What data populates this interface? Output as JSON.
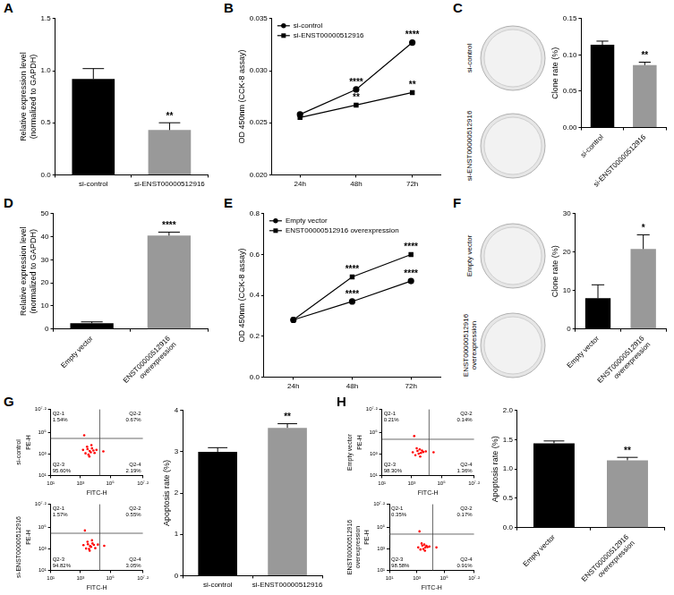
{
  "chart_data": [
    {
      "panel": "A",
      "type": "bar",
      "categories": [
        "si-control",
        "si-ENST00000512916"
      ],
      "values": [
        0.92,
        0.43
      ],
      "errors": [
        0.1,
        0.07
      ],
      "colors": [
        "#000000",
        "#999999"
      ],
      "y_label": [
        "Relative expression level",
        "(normalized to GAPDH)"
      ],
      "ylim": [
        0,
        1.5
      ],
      "yticks": [
        {
          "value": 0,
          "label": "0.0"
        },
        {
          "value": 0.5,
          "label": "0.5"
        },
        {
          "value": 1,
          "label": "1.0"
        },
        {
          "value": 1.5,
          "label": "1.5"
        }
      ],
      "annotations": [
        {
          "x": "si-ENST00000512916",
          "text": "**"
        }
      ]
    },
    {
      "panel": "B",
      "type": "line",
      "categories": [
        "24h",
        "48h",
        "72h"
      ],
      "series": [
        {
          "name": "si-control",
          "color": "#000000",
          "marker": "circle",
          "values": [
            0.0258,
            0.0282,
            0.0327
          ]
        },
        {
          "name": "si-ENST00000512916",
          "color": "#000000",
          "marker": "square",
          "values": [
            0.0255,
            0.0267,
            0.0279
          ]
        }
      ],
      "y_label": "OD 450nm (CCK-8 assay)",
      "ylim": [
        0.02,
        0.035
      ],
      "yticks": [
        {
          "value": 0.02,
          "label": "0.020"
        },
        {
          "value": 0.025,
          "label": "0.025"
        },
        {
          "value": 0.03,
          "label": "0.030"
        },
        {
          "value": 0.035,
          "label": "0.035"
        }
      ],
      "legend": "upper left",
      "annotations": [
        {
          "x": "48h",
          "y": 0.0282,
          "text": "****"
        },
        {
          "x": "48h",
          "y": 0.0267,
          "text": "**"
        },
        {
          "x": "72h",
          "y": 0.0327,
          "text": "****"
        },
        {
          "x": "72h",
          "y": 0.0279,
          "text": "**"
        }
      ]
    },
    {
      "panel": "C",
      "type": "bar",
      "categories": [
        "si-control",
        "si-ENST00000512916"
      ],
      "values": [
        0.114,
        0.086
      ],
      "errors": [
        0.005,
        0.004
      ],
      "colors": [
        "#000000",
        "#999999"
      ],
      "y_label": "Clone rate (%)",
      "ylim": [
        0,
        0.15
      ],
      "yticks": [
        {
          "value": 0,
          "label": "0.00"
        },
        {
          "value": 0.05,
          "label": "0.05"
        },
        {
          "value": 0.1,
          "label": "0.10"
        },
        {
          "value": 0.15,
          "label": "0.15"
        }
      ],
      "annotations": [
        {
          "x": "si-ENST00000512916",
          "text": "**"
        }
      ]
    },
    {
      "panel": "D",
      "type": "bar",
      "categories": [
        "Empty vector",
        "ENST00000512916 overexpression"
      ],
      "values": [
        2.5,
        40.5
      ],
      "errors": [
        0.6,
        1.5
      ],
      "colors": [
        "#000000",
        "#999999"
      ],
      "y_label": [
        "Relative expression level",
        "(normalized to GAPDH)"
      ],
      "ylim": [
        0,
        50
      ],
      "yticks": [
        0,
        10,
        20,
        30,
        40,
        50
      ],
      "annotations": [
        {
          "x": "ENST00000512916 overexpression",
          "text": "****"
        }
      ]
    },
    {
      "panel": "E",
      "type": "line",
      "categories": [
        "24h",
        "48h",
        "72h"
      ],
      "series": [
        {
          "name": "Empty vector",
          "color": "#000000",
          "marker": "circle",
          "values": [
            0.28,
            0.37,
            0.47
          ]
        },
        {
          "name": "ENST00000512916 overexpression",
          "color": "#000000",
          "marker": "square",
          "values": [
            0.28,
            0.49,
            0.6
          ]
        }
      ],
      "y_label": "OD 450nm (CCK-8 assay)",
      "ylim": [
        0,
        0.8
      ],
      "yticks": [
        {
          "value": 0,
          "label": "0.0"
        },
        {
          "value": 0.2,
          "label": "0.2"
        },
        {
          "value": 0.4,
          "label": "0.4"
        },
        {
          "value": 0.6,
          "label": "0.6"
        },
        {
          "value": 0.8,
          "label": "0.8"
        }
      ],
      "legend": "upper left",
      "annotations": [
        {
          "x": "48h",
          "y": 0.49,
          "text": "****"
        },
        {
          "x": "48h",
          "y": 0.37,
          "text": "****"
        },
        {
          "x": "72h",
          "y": 0.6,
          "text": "****"
        },
        {
          "x": "72h",
          "y": 0.47,
          "text": "****"
        }
      ]
    },
    {
      "panel": "F",
      "type": "bar",
      "categories": [
        "Empty vector",
        "ENST00000512916 overexpression"
      ],
      "values": [
        8.0,
        20.8
      ],
      "errors": [
        3.5,
        3.7
      ],
      "colors": [
        "#000000",
        "#999999"
      ],
      "y_label": "Clone rate (%)",
      "ylim": [
        0,
        30
      ],
      "yticks": [
        0,
        10,
        20,
        30
      ],
      "annotations": [
        {
          "x": "ENST00000512916 overexpression",
          "text": "*"
        }
      ]
    },
    {
      "panel": "G",
      "type": "scatter",
      "title": "si-control",
      "x_label": "FITC-H",
      "y_label": "PE-H",
      "log": true,
      "color": "#ff0000",
      "xlim": [
        10,
        15848931.92
      ],
      "ylim": [
        10,
        15848931.92
      ],
      "xticks": [
        {
          "value": 10,
          "label": "10¹"
        },
        {
          "value": 1000,
          "label": "10³"
        },
        {
          "value": 100000,
          "label": "10⁵"
        },
        {
          "value": 15848931.92,
          "label": "10⁷·²"
        }
      ],
      "yticks": [
        {
          "value": 10,
          "label": "10¹"
        },
        {
          "value": 1000,
          "label": "10³"
        },
        {
          "value": 100000,
          "label": "10⁵"
        },
        {
          "value": 15848931.92,
          "label": "10⁷·²"
        }
      ],
      "gate": {
        "x": 20000,
        "y": 30000
      },
      "quadrants": [
        {
          "name": "Q2-1",
          "value": 1.54,
          "value_label": "1.54%"
        },
        {
          "name": "Q2-2",
          "value": 0.67,
          "value_label": "0.67%"
        },
        {
          "name": "Q2-3",
          "value": 95.6,
          "value_label": "95.60%"
        },
        {
          "name": "Q2-4",
          "value": 2.19,
          "value_label": "2.19%"
        }
      ],
      "x": [
        1500,
        2200,
        3000,
        3500,
        4200,
        5000,
        6000,
        7500,
        9000,
        2800,
        4000,
        5500,
        12000,
        35000,
        1800
      ],
      "values": [
        2500,
        1200,
        3000,
        900,
        2000,
        1500,
        3500,
        2200,
        1300,
        5000,
        600,
        7000,
        2500,
        1800,
        60000
      ]
    },
    {
      "type": "scatter",
      "title": "si-ENST00000512916",
      "x_label": "FITC-H",
      "y_label": "PE-H",
      "log": true,
      "color": "#ff0000",
      "xlim": [
        10,
        15848931.92
      ],
      "ylim": [
        10,
        15848931.92
      ],
      "xticks": [
        {
          "value": 10,
          "label": "10¹"
        },
        {
          "value": 1000,
          "label": "10³"
        },
        {
          "value": 100000,
          "label": "10⁵"
        },
        {
          "value": 15848931.92,
          "label": "10⁷·²"
        }
      ],
      "yticks": [
        {
          "value": 10,
          "label": "10¹"
        },
        {
          "value": 1000,
          "label": "10³"
        },
        {
          "value": 100000,
          "label": "10⁵"
        },
        {
          "value": 15848931.92,
          "label": "10⁷·²"
        }
      ],
      "gate": {
        "x": 20000,
        "y": 30000
      },
      "quadrants": [
        {
          "name": "Q2-1",
          "value": 1.57,
          "value_label": "1.57%"
        },
        {
          "name": "Q2-2",
          "value": 0.55,
          "value_label": "0.55%"
        },
        {
          "name": "Q2-3",
          "value": 94.82,
          "value_label": "94.82%"
        },
        {
          "name": "Q2-4",
          "value": 3.05,
          "value_label": "3.05%"
        }
      ],
      "x": [
        1600,
        2400,
        3200,
        3800,
        4500,
        5200,
        6500,
        8000,
        10000,
        3000,
        4200,
        6000,
        15000,
        40000,
        2000
      ],
      "values": [
        2300,
        1100,
        2800,
        1000,
        1900,
        1600,
        3300,
        2400,
        1200,
        4800,
        700,
        6500,
        2600,
        2000,
        55000
      ]
    },
    {
      "type": "bar",
      "categories": [
        "si-control",
        "si-ENST00000512916"
      ],
      "values": [
        3.0,
        3.58
      ],
      "errors": [
        0.1,
        0.1
      ],
      "colors": [
        "#000000",
        "#999999"
      ],
      "y_label": "Apoptosis rate (%)",
      "ylim": [
        0,
        4
      ],
      "yticks": [
        0,
        1,
        2,
        3,
        4
      ],
      "annotations": [
        {
          "x": "si-ENST00000512916",
          "text": "**"
        }
      ]
    },
    {
      "panel": "H",
      "type": "scatter",
      "title": "Empty vector",
      "x_label": "FITC-H",
      "y_label": "PE-H",
      "log": true,
      "color": "#ff0000",
      "xlim": [
        10,
        15848931.92
      ],
      "ylim": [
        10,
        15848931.92
      ],
      "xticks": [
        {
          "value": 10,
          "label": "10¹"
        },
        {
          "value": 1000,
          "label": "10³"
        },
        {
          "value": 100000,
          "label": "10⁵"
        },
        {
          "value": 15848931.92,
          "label": "10⁷·²"
        }
      ],
      "yticks": [
        {
          "value": 10,
          "label": "10¹"
        },
        {
          "value": 1000,
          "label": "10³"
        },
        {
          "value": 100000,
          "label": "10⁵"
        },
        {
          "value": 15848931.92,
          "label": "10⁷·²"
        }
      ],
      "gate": {
        "x": 15000,
        "y": 25000
      },
      "quadrants": [
        {
          "name": "Q2-1",
          "value": 0.21,
          "value_label": "0.21%"
        },
        {
          "name": "Q2-2",
          "value": 0.14,
          "value_label": "0.14%"
        },
        {
          "name": "Q2-3",
          "value": 98.3,
          "value_label": "98.30%"
        },
        {
          "name": "Q2-4",
          "value": 1.36,
          "value_label": "1.36%"
        }
      ],
      "x": [
        1200,
        1800,
        2500,
        3000,
        3500,
        4200,
        5000,
        6000,
        2200,
        3800,
        9000,
        30000,
        1500
      ],
      "values": [
        1500,
        800,
        2000,
        1100,
        2800,
        1300,
        2200,
        1600,
        3500,
        600,
        1800,
        1500,
        50000
      ]
    },
    {
      "type": "scatter",
      "title": "ENST00000512916 overexpression",
      "x_label": "FITC-H",
      "y_label": "PE-H",
      "log": true,
      "color": "#ff0000",
      "xlim": [
        10,
        15848931.92
      ],
      "ylim": [
        10,
        15848931.92
      ],
      "xticks": [
        {
          "value": 10,
          "label": "10¹"
        },
        {
          "value": 1000,
          "label": "10³"
        },
        {
          "value": 100000,
          "label": "10⁵"
        },
        {
          "value": 15848931.92,
          "label": "10⁷·²"
        }
      ],
      "yticks": [
        {
          "value": 10,
          "label": "10¹"
        },
        {
          "value": 1000,
          "label": "10³"
        },
        {
          "value": 100000,
          "label": "10⁵"
        },
        {
          "value": 15848931.92,
          "label": "10⁷·²"
        }
      ],
      "gate": {
        "x": 15000,
        "y": 25000
      },
      "quadrants": [
        {
          "name": "Q2-1",
          "value": 0.35,
          "value_label": "0.35%"
        },
        {
          "name": "Q2-2",
          "value": 0.17,
          "value_label": "0.17%"
        },
        {
          "name": "Q2-3",
          "value": 98.58,
          "value_label": "98.58%"
        },
        {
          "name": "Q2-4",
          "value": 0.91,
          "value_label": "0.91%"
        }
      ],
      "x": [
        1300,
        1900,
        2600,
        3100,
        3600,
        4300,
        5200,
        6200,
        2300,
        4000,
        8500,
        28000,
        1600
      ],
      "values": [
        1400,
        900,
        2100,
        1000,
        2600,
        1400,
        2000,
        1500,
        3300,
        700,
        1700,
        1400,
        45000
      ]
    },
    {
      "type": "bar",
      "categories": [
        "Empty vector",
        "ENST00000512916 overexpression"
      ],
      "values": [
        1.44,
        1.15
      ],
      "errors": [
        0.04,
        0.05
      ],
      "colors": [
        "#000000",
        "#999999"
      ],
      "y_label": "Apoptosis rate (%)",
      "ylim": [
        0,
        2
      ],
      "yticks": [
        {
          "value": 0,
          "label": "0.0"
        },
        {
          "value": 0.5,
          "label": "0.5"
        },
        {
          "value": 1,
          "label": "1.0"
        },
        {
          "value": 1.5,
          "label": "1.5"
        },
        {
          "value": 2,
          "label": "2.0"
        }
      ],
      "annotations": [
        {
          "x": "ENST00000512916 overexpression",
          "text": "**"
        }
      ]
    }
  ],
  "images": [
    {
      "panel": "C",
      "labels": [
        "si-control",
        "si-ENST00000512916"
      ]
    },
    {
      "panel": "F",
      "labels": [
        "Empty vector",
        "ENST00000512916 overexpression"
      ]
    }
  ]
}
